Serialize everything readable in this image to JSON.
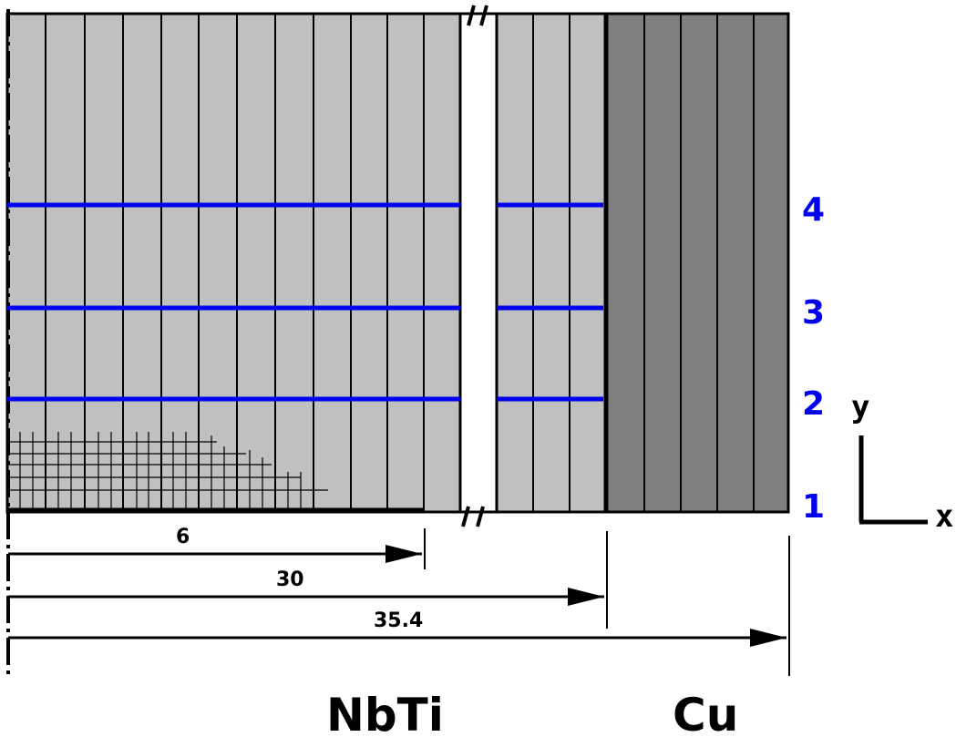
{
  "colors": {
    "nbti_fill": "#c0c0c0",
    "cu_fill": "#7f7f7f",
    "line_color": "#0000ee",
    "stroke": "#000000"
  },
  "lines": [
    {
      "label": "1"
    },
    {
      "label": "2"
    },
    {
      "label": "3"
    },
    {
      "label": "4"
    }
  ],
  "dimensions": [
    {
      "label": "6"
    },
    {
      "label": "30"
    },
    {
      "label": "35.4"
    }
  ],
  "axes": {
    "x_label": "x",
    "y_label": "y"
  },
  "materials": {
    "left": "NbTi",
    "right": "Cu"
  }
}
